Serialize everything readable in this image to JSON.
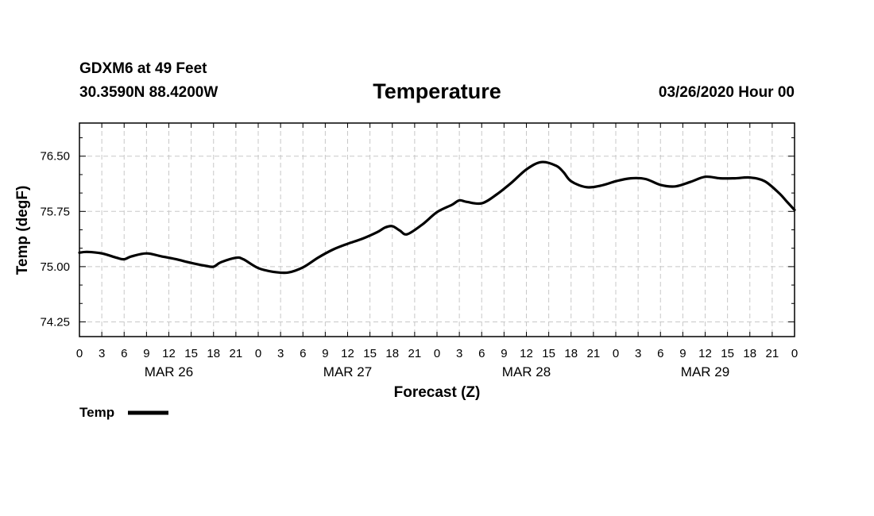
{
  "header": {
    "station": "GDXM6 at 49 Feet",
    "coords": "30.3590N 88.4200W",
    "datetime": "03/26/2020 Hour 00"
  },
  "chart_data": {
    "type": "line",
    "title": "Temperature",
    "xlabel": "Forecast (Z)",
    "ylabel": "Temp (degF)",
    "xlim": [
      0,
      96
    ],
    "ylim": [
      74.05,
      76.95
    ],
    "yticks": [
      74.25,
      75.0,
      75.75,
      76.5
    ],
    "ytick_labels": [
      "74.25",
      "75.00",
      "75.75",
      "76.50"
    ],
    "xtick_labels": [
      "0",
      "3",
      "6",
      "9",
      "12",
      "15",
      "18",
      "21",
      "0",
      "3",
      "6",
      "9",
      "12",
      "15",
      "18",
      "21",
      "0",
      "3",
      "6",
      "9",
      "12",
      "15",
      "18",
      "21",
      "0",
      "3",
      "6",
      "9",
      "12",
      "15",
      "18",
      "21",
      "0"
    ],
    "day_labels": [
      {
        "hour": 12,
        "label": "MAR 26"
      },
      {
        "hour": 36,
        "label": "MAR 27"
      },
      {
        "hour": 60,
        "label": "MAR 28"
      },
      {
        "hour": 84,
        "label": "MAR 29"
      }
    ],
    "grid": true,
    "legend": "bottom-left",
    "series": [
      {
        "name": "Temp",
        "color": "#000000",
        "x": [
          0,
          1,
          3,
          5,
          6,
          7,
          9,
          11,
          13,
          15,
          17,
          18,
          19,
          21,
          22,
          24,
          26,
          28,
          30,
          32,
          34,
          36,
          38,
          40,
          41,
          42,
          43,
          44,
          46,
          48,
          50,
          51,
          52,
          54,
          56,
          58,
          60,
          62,
          64,
          65,
          66,
          68,
          70,
          72,
          74,
          76,
          78,
          80,
          82,
          84,
          86,
          88,
          90,
          92,
          94,
          95,
          96
        ],
        "values": [
          75.19,
          75.2,
          75.18,
          75.12,
          75.1,
          75.14,
          75.18,
          75.14,
          75.1,
          75.05,
          75.01,
          75.0,
          75.06,
          75.12,
          75.1,
          74.98,
          74.93,
          74.92,
          74.99,
          75.12,
          75.23,
          75.31,
          75.38,
          75.47,
          75.53,
          75.55,
          75.49,
          75.44,
          75.57,
          75.74,
          75.84,
          75.9,
          75.88,
          75.86,
          75.98,
          76.14,
          76.32,
          76.42,
          76.37,
          76.28,
          76.16,
          76.08,
          76.1,
          76.16,
          76.2,
          76.19,
          76.11,
          76.09,
          76.15,
          76.22,
          76.2,
          76.2,
          76.21,
          76.16,
          75.99,
          75.88,
          75.77
        ]
      }
    ]
  }
}
